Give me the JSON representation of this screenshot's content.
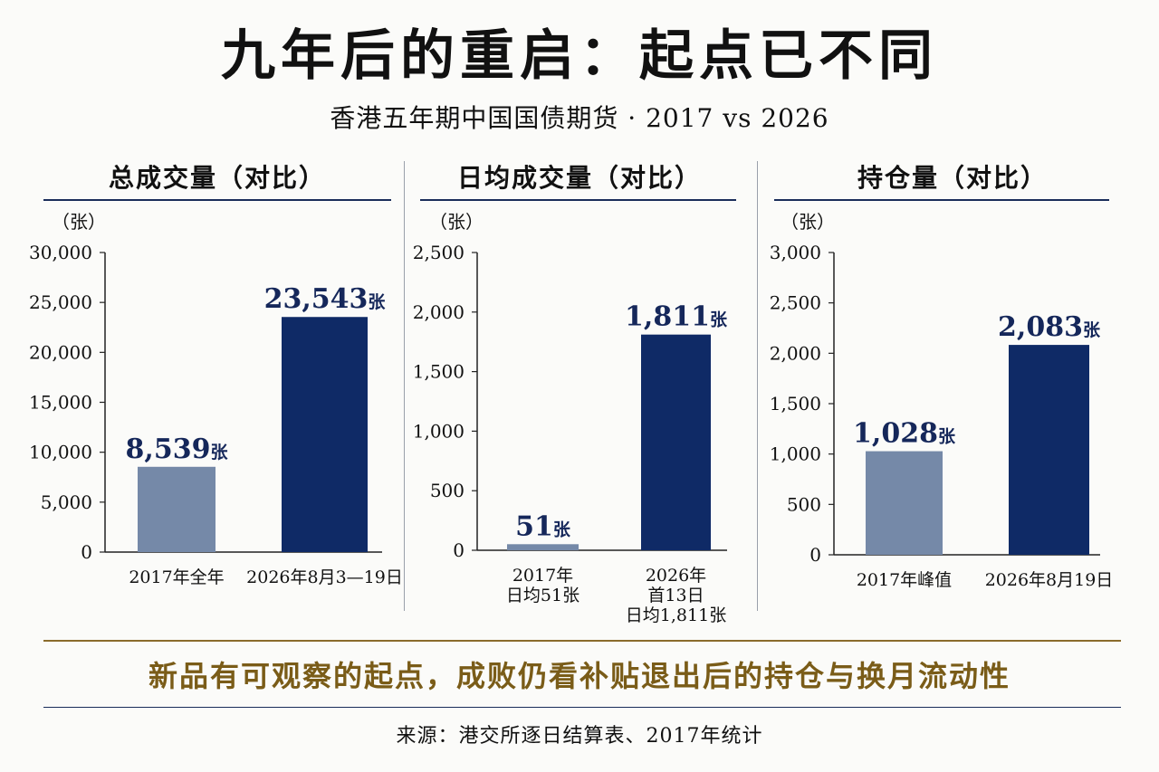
{
  "header": {
    "title": "九年后的重启：起点已不同",
    "subtitle": "香港五年期中国国债期货 · 2017 vs 2026"
  },
  "colors": {
    "bar_2017": "#7589a8",
    "bar_2026": "#0f2a66",
    "value_label": "#15275a",
    "axis": "#222222",
    "conclusion": "#7a5c18"
  },
  "chart_data": [
    {
      "type": "bar",
      "title": "总成交量（对比）",
      "ylabel": "（张）",
      "ylim": [
        0,
        30000
      ],
      "yticks": [
        0,
        5000,
        10000,
        15000,
        20000,
        25000,
        30000
      ],
      "ytick_labels": [
        "0",
        "5,000",
        "10,000",
        "15,000",
        "20,000",
        "25,000",
        "30,000"
      ],
      "categories": [
        [
          "2017年全年"
        ],
        [
          "2026年8月3—19日"
        ]
      ],
      "values": [
        8539,
        23543
      ],
      "value_labels": [
        "8,539",
        "23,543"
      ],
      "unit": "张",
      "grid": false
    },
    {
      "type": "bar",
      "title": "日均成交量（对比）",
      "ylabel": "（张）",
      "ylim": [
        0,
        2500
      ],
      "yticks": [
        0,
        500,
        1000,
        1500,
        2000,
        2500
      ],
      "ytick_labels": [
        "0",
        "500",
        "1,000",
        "1,500",
        "2,000",
        "2,500"
      ],
      "categories": [
        [
          "2017年",
          "日均51张"
        ],
        [
          "2026年",
          "首13日",
          "日均1,811张"
        ]
      ],
      "values": [
        51,
        1811
      ],
      "value_labels": [
        "51",
        "1,811"
      ],
      "unit": "张",
      "grid": false
    },
    {
      "type": "bar",
      "title": "持仓量（对比）",
      "ylabel": "（张）",
      "ylim": [
        0,
        3000
      ],
      "yticks": [
        0,
        500,
        1000,
        1500,
        2000,
        2500,
        3000
      ],
      "ytick_labels": [
        "0",
        "500",
        "1,000",
        "1,500",
        "2,000",
        "2,500",
        "3,000"
      ],
      "categories": [
        [
          "2017年峰值"
        ],
        [
          "2026年8月19日"
        ]
      ],
      "values": [
        1028,
        2083
      ],
      "value_labels": [
        "1,028",
        "2,083"
      ],
      "unit": "张",
      "grid": false
    }
  ],
  "footer": {
    "conclusion": "新品有可观察的起点，成败仍看补贴退出后的持仓与换月流动性",
    "source": "来源：港交所逐日结算表、2017年统计"
  }
}
